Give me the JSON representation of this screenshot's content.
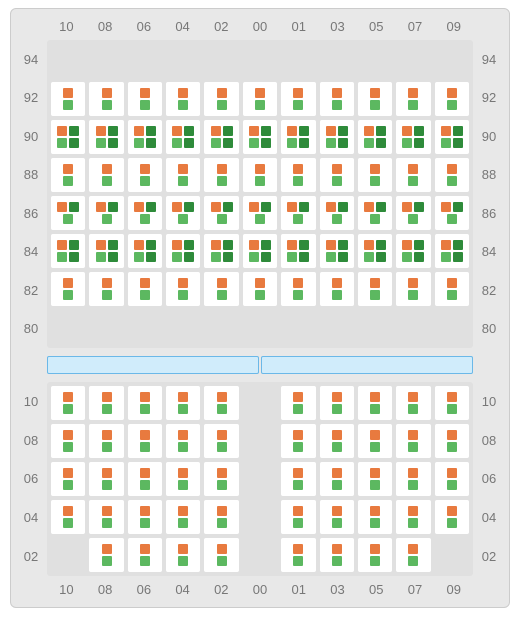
{
  "colors": {
    "orange": "#e87a3f",
    "green": "#5cb860",
    "darkgreen": "#2e8b3a",
    "cell_bg": "#ffffff",
    "empty_bg": "transparent",
    "panel_bg": "#e0e0e0"
  },
  "fontsize_label": 13,
  "col_labels": [
    "10",
    "08",
    "06",
    "04",
    "02",
    "00",
    "01",
    "03",
    "05",
    "07",
    "09"
  ],
  "top_rows": [
    "94",
    "92",
    "90",
    "88",
    "86",
    "84",
    "82",
    "80"
  ],
  "bottom_rows": [
    "10",
    "08",
    "06",
    "04",
    "02"
  ],
  "top_grid": [
    {
      "row": "94",
      "cells": [
        [
          "empty"
        ],
        [
          "empty"
        ],
        [
          "empty"
        ],
        [
          "empty"
        ],
        [
          "empty"
        ],
        [
          "empty"
        ],
        [
          "empty"
        ],
        [
          "empty"
        ],
        [
          "empty"
        ],
        [
          "empty"
        ],
        [
          "empty"
        ]
      ]
    },
    {
      "row": "92",
      "cells": [
        [
          "og"
        ],
        [
          "og"
        ],
        [
          "og"
        ],
        [
          "og"
        ],
        [
          "og"
        ],
        [
          "og"
        ],
        [
          "og"
        ],
        [
          "og"
        ],
        [
          "og"
        ],
        [
          "og"
        ],
        [
          "og"
        ]
      ]
    },
    {
      "row": "90",
      "cells": [
        [
          "og_dd"
        ],
        [
          "og_dd"
        ],
        [
          "og_dd"
        ],
        [
          "og_dd"
        ],
        [
          "og_dd"
        ],
        [
          "og_dd"
        ],
        [
          "og_dd"
        ],
        [
          "og_dd"
        ],
        [
          "og_dd"
        ],
        [
          "og_dd"
        ],
        [
          "og_dd"
        ]
      ]
    },
    {
      "row": "88",
      "cells": [
        [
          "og"
        ],
        [
          "og"
        ],
        [
          "og"
        ],
        [
          "og"
        ],
        [
          "og"
        ],
        [
          "og"
        ],
        [
          "og"
        ],
        [
          "og"
        ],
        [
          "og"
        ],
        [
          "og"
        ],
        [
          "og"
        ]
      ]
    },
    {
      "row": "86",
      "cells": [
        [
          "og_d"
        ],
        [
          "og_d"
        ],
        [
          "og_d"
        ],
        [
          "og_d"
        ],
        [
          "og_d"
        ],
        [
          "og_d"
        ],
        [
          "og_d"
        ],
        [
          "og_d"
        ],
        [
          "og_d"
        ],
        [
          "og_d"
        ],
        [
          "og_d"
        ]
      ]
    },
    {
      "row": "84",
      "cells": [
        [
          "og_dd"
        ],
        [
          "og_dd"
        ],
        [
          "og_dd"
        ],
        [
          "og_dd"
        ],
        [
          "og_dd"
        ],
        [
          "og_dd"
        ],
        [
          "og_dd"
        ],
        [
          "og_dd"
        ],
        [
          "og_dd"
        ],
        [
          "og_dd"
        ],
        [
          "og_dd"
        ]
      ]
    },
    {
      "row": "82",
      "cells": [
        [
          "og"
        ],
        [
          "og"
        ],
        [
          "og"
        ],
        [
          "og"
        ],
        [
          "og"
        ],
        [
          "og"
        ],
        [
          "og"
        ],
        [
          "og"
        ],
        [
          "og"
        ],
        [
          "og"
        ],
        [
          "og"
        ]
      ]
    },
    {
      "row": "80",
      "cells": [
        [
          "empty"
        ],
        [
          "empty"
        ],
        [
          "empty"
        ],
        [
          "empty"
        ],
        [
          "empty"
        ],
        [
          "empty"
        ],
        [
          "empty"
        ],
        [
          "empty"
        ],
        [
          "empty"
        ],
        [
          "empty"
        ],
        [
          "empty"
        ]
      ]
    }
  ],
  "bottom_grid": [
    {
      "row": "10",
      "cells": [
        [
          "og"
        ],
        [
          "og"
        ],
        [
          "og"
        ],
        [
          "og"
        ],
        [
          "og"
        ],
        [
          "blank"
        ],
        [
          "og"
        ],
        [
          "og"
        ],
        [
          "og"
        ],
        [
          "og"
        ],
        [
          "og"
        ]
      ]
    },
    {
      "row": "08",
      "cells": [
        [
          "og"
        ],
        [
          "og"
        ],
        [
          "og"
        ],
        [
          "og"
        ],
        [
          "og"
        ],
        [
          "blank"
        ],
        [
          "og"
        ],
        [
          "og"
        ],
        [
          "og"
        ],
        [
          "og"
        ],
        [
          "og"
        ]
      ]
    },
    {
      "row": "06",
      "cells": [
        [
          "og"
        ],
        [
          "og"
        ],
        [
          "og"
        ],
        [
          "og"
        ],
        [
          "og"
        ],
        [
          "blank"
        ],
        [
          "og"
        ],
        [
          "og"
        ],
        [
          "og"
        ],
        [
          "og"
        ],
        [
          "og"
        ]
      ]
    },
    {
      "row": "04",
      "cells": [
        [
          "og"
        ],
        [
          "og"
        ],
        [
          "og"
        ],
        [
          "og"
        ],
        [
          "og"
        ],
        [
          "blank"
        ],
        [
          "og"
        ],
        [
          "og"
        ],
        [
          "og"
        ],
        [
          "og"
        ],
        [
          "og"
        ]
      ]
    },
    {
      "row": "02",
      "cells": [
        [
          "blank"
        ],
        [
          "og"
        ],
        [
          "og"
        ],
        [
          "og"
        ],
        [
          "og"
        ],
        [
          "blank"
        ],
        [
          "og"
        ],
        [
          "og"
        ],
        [
          "og"
        ],
        [
          "og"
        ],
        [
          "blank"
        ]
      ]
    }
  ],
  "cell_patterns": {
    "empty": {
      "bg": "empty",
      "slots": []
    },
    "blank": {
      "bg": "empty",
      "slots": []
    },
    "og": {
      "bg": "white",
      "slots": [
        [
          "orange"
        ],
        [
          "green"
        ]
      ]
    },
    "og_d": {
      "bg": "white",
      "slots": [
        [
          "orange",
          "darkgreen"
        ],
        [
          "green"
        ]
      ]
    },
    "og_dd": {
      "bg": "white",
      "slots": [
        [
          "orange",
          "darkgreen"
        ],
        [
          "green",
          "darkgreen"
        ]
      ]
    }
  }
}
